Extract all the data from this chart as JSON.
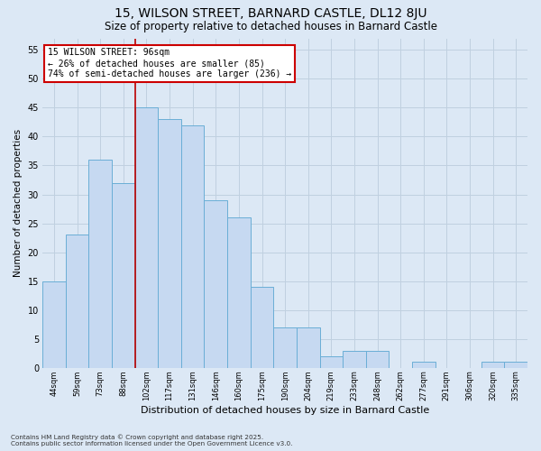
{
  "title1": "15, WILSON STREET, BARNARD CASTLE, DL12 8JU",
  "title2": "Size of property relative to detached houses in Barnard Castle",
  "xlabel": "Distribution of detached houses by size in Barnard Castle",
  "ylabel": "Number of detached properties",
  "categories": [
    "44sqm",
    "59sqm",
    "73sqm",
    "88sqm",
    "102sqm",
    "117sqm",
    "131sqm",
    "146sqm",
    "160sqm",
    "175sqm",
    "190sqm",
    "204sqm",
    "219sqm",
    "233sqm",
    "248sqm",
    "262sqm",
    "277sqm",
    "291sqm",
    "306sqm",
    "320sqm",
    "335sqm"
  ],
  "values": [
    15,
    23,
    36,
    32,
    45,
    43,
    42,
    29,
    26,
    14,
    7,
    7,
    2,
    3,
    3,
    0,
    1,
    0,
    0,
    1,
    1
  ],
  "bar_color": "#c6d9f1",
  "bar_edge_color": "#6aaed6",
  "grid_color": "#c0d0e0",
  "background_color": "#dce8f5",
  "vline_color": "#bb0000",
  "annotation_text": "15 WILSON STREET: 96sqm\n← 26% of detached houses are smaller (85)\n74% of semi-detached houses are larger (236) →",
  "annotation_box_facecolor": "#ffffff",
  "annotation_box_edgecolor": "#cc0000",
  "footer1": "Contains HM Land Registry data © Crown copyright and database right 2025.",
  "footer2": "Contains public sector information licensed under the Open Government Licence v3.0.",
  "ylim_max": 57,
  "yticks": [
    0,
    5,
    10,
    15,
    20,
    25,
    30,
    35,
    40,
    45,
    50,
    55
  ]
}
